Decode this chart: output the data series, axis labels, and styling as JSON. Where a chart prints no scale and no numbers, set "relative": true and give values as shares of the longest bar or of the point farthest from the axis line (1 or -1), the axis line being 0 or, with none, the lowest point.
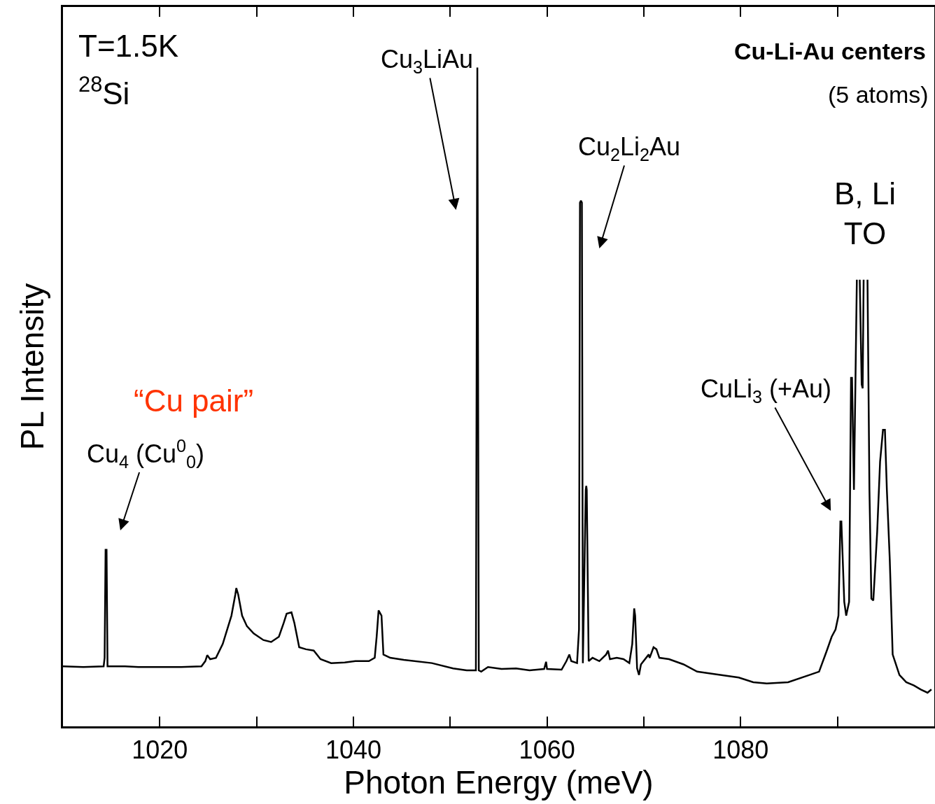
{
  "chart_data": {
    "type": "line",
    "relative": true,
    "line_style": "solid",
    "color": "#000000",
    "xlabel": "Photon Energy (meV)",
    "ylabel": "PL Intensity",
    "xlim": [
      1010,
      1100
    ],
    "xticks": [
      1020,
      {
        "value": 1030,
        "label": null
      },
      1040,
      {
        "value": 1050,
        "label": null
      },
      1060,
      {
        "value": 1070,
        "label": null
      },
      1080,
      {
        "value": 1090,
        "label": null
      }
    ],
    "annotations": [
      "T=1.5K",
      "$^{28}$Si",
      "Cu-Li-Au centers",
      "(5 atoms)",
      "Cu$_{3}$LiAu",
      "Cu$_{2}$Li$_{2}$Au",
      "B, Li\nTO",
      "“Cu pair”",
      "CuLi$_{3}$ (+Au)",
      "Cu$_{4}$ (Cu$^{0}$$_{0}$)"
    ],
    "x": [
      1010.0,
      1012.1,
      1014.2,
      1014.3,
      1014.4,
      1014.5,
      1014.6,
      1016.4,
      1017.8,
      1022.2,
      1024.3,
      1024.7,
      1024.9,
      1025.2,
      1025.8,
      1026.5,
      1027.4,
      1027.8,
      1027.9,
      1028.1,
      1028.5,
      1029.0,
      1029.7,
      1030.7,
      1031.5,
      1032.3,
      1032.8,
      1033.1,
      1033.6,
      1033.9,
      1034.4,
      1035.1,
      1035.9,
      1036.6,
      1037.7,
      1039.1,
      1040.2,
      1041.6,
      1042.2,
      1042.4,
      1042.6,
      1042.9,
      1043.1,
      1043.8,
      1045.2,
      1048.1,
      1050.3,
      1051.7,
      1052.65,
      1052.8,
      1052.95,
      1053.2,
      1053.9,
      1055.3,
      1056.8,
      1058.2,
      1059.7,
      1059.9,
      1060.0,
      1061.5,
      1062.0,
      1062.3,
      1062.5,
      1063.1,
      1063.3,
      1063.4,
      1063.5,
      1063.6,
      1063.7,
      1064.0,
      1064.05,
      1064.1,
      1064.3,
      1064.7,
      1065.4,
      1066.1,
      1066.3,
      1066.5,
      1067.2,
      1067.9,
      1068.5,
      1068.8,
      1069.0,
      1069.1,
      1069.3,
      1069.5,
      1069.7,
      1070.5,
      1070.6,
      1071.0,
      1071.3,
      1071.6,
      1072.6,
      1074.1,
      1075.5,
      1077.0,
      1078.4,
      1079.8,
      1081.3,
      1082.7,
      1084.9,
      1087.1,
      1088.1,
      1088.9,
      1089.4,
      1089.8,
      1090.1,
      1090.3,
      1090.4,
      1090.7,
      1090.9,
      1091.2,
      1091.4,
      1091.5,
      1091.7,
      1091.8,
      1092.0,
      1092.1,
      1092.3,
      1092.5,
      1092.6,
      1092.7,
      1092.9,
      1093.1,
      1093.3,
      1093.5,
      1093.7,
      1094.1,
      1094.4,
      1094.7,
      1094.9,
      1095.1,
      1095.4,
      1095.7,
      1096.4,
      1097.1,
      1097.9,
      1098.6,
      1099.3,
      1099.7
    ],
    "values": [
      0.091,
      0.09,
      0.091,
      0.104,
      0.268,
      0.268,
      0.091,
      0.091,
      0.09,
      0.09,
      0.091,
      0.099,
      0.108,
      0.102,
      0.104,
      0.125,
      0.168,
      0.2,
      0.21,
      0.2,
      0.168,
      0.152,
      0.141,
      0.131,
      0.128,
      0.136,
      0.157,
      0.171,
      0.173,
      0.157,
      0.12,
      0.117,
      0.115,
      0.102,
      0.096,
      0.097,
      0.099,
      0.099,
      0.104,
      0.136,
      0.176,
      0.168,
      0.109,
      0.104,
      0.101,
      0.096,
      0.088,
      0.085,
      0.085,
      1.0,
      0.085,
      0.083,
      0.09,
      0.087,
      0.088,
      0.085,
      0.087,
      0.098,
      0.087,
      0.086,
      0.099,
      0.109,
      0.099,
      0.096,
      0.147,
      0.795,
      0.798,
      0.795,
      0.096,
      0.359,
      0.365,
      0.359,
      0.099,
      0.104,
      0.099,
      0.109,
      0.115,
      0.102,
      0.104,
      0.102,
      0.096,
      0.125,
      0.179,
      0.168,
      0.088,
      0.078,
      0.094,
      0.109,
      0.104,
      0.12,
      0.117,
      0.104,
      0.102,
      0.094,
      0.083,
      0.08,
      0.077,
      0.074,
      0.067,
      0.065,
      0.067,
      0.078,
      0.083,
      0.115,
      0.136,
      0.147,
      0.168,
      0.311,
      0.311,
      0.189,
      0.168,
      0.189,
      0.529,
      0.529,
      0.359,
      0.465,
      0.678,
      null,
      0.678,
      0.519,
      0.513,
      0.678,
      null,
      0.678,
      0.359,
      0.194,
      0.191,
      0.295,
      0.402,
      0.45,
      0.45,
      0.359,
      0.253,
      0.109,
      0.078,
      0.067,
      0.062,
      0.056,
      0.051,
      0.056
    ]
  }
}
